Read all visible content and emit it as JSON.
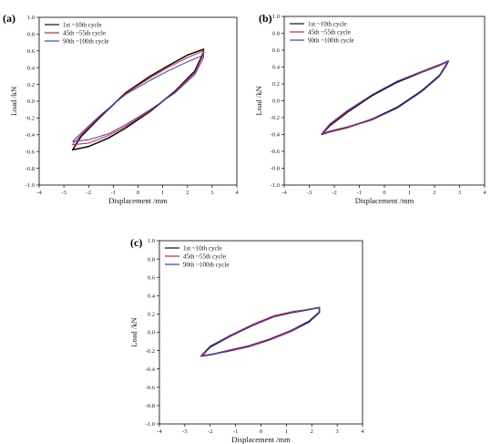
{
  "colors": {
    "series_1": "#111111",
    "series_2": "#e0202a",
    "series_3": "#3a3ad8"
  },
  "chart_data": [
    {
      "type": "line",
      "panel": "(a)",
      "xlabel": "Displacement /mm",
      "ylabel": "Load /kN",
      "xlim": [
        -4,
        4
      ],
      "ylim": [
        -1.0,
        1.0
      ],
      "xticks": [
        -4,
        -3,
        -2,
        -1,
        0,
        1,
        2,
        3,
        4
      ],
      "yticks": [
        -1.0,
        -0.8,
        -0.6,
        -0.4,
        -0.2,
        0.0,
        0.2,
        0.4,
        0.6,
        0.8,
        1.0
      ],
      "legend_position": "top-left",
      "series": [
        {
          "name": "1st ~10th cycle",
          "color": "#111111",
          "x": [
            -2.65,
            -2.3,
            -1.5,
            -0.5,
            0.5,
            1.2,
            2.0,
            2.65,
            2.65,
            2.3,
            1.5,
            0.5,
            -0.5,
            -1.2,
            -2.0,
            -2.65
          ],
          "y": [
            -0.58,
            -0.42,
            -0.18,
            0.1,
            0.3,
            0.42,
            0.55,
            0.62,
            0.58,
            0.36,
            0.12,
            -0.12,
            -0.32,
            -0.44,
            -0.54,
            -0.58
          ]
        },
        {
          "name": "45th ~55th cycle",
          "color": "#e0202a",
          "x": [
            -2.65,
            -2.3,
            -1.5,
            -0.5,
            0.5,
            1.2,
            2.0,
            2.65,
            2.65,
            2.3,
            1.5,
            0.5,
            -0.5,
            -1.2,
            -2.0,
            -2.65
          ],
          "y": [
            -0.52,
            -0.4,
            -0.17,
            0.09,
            0.28,
            0.4,
            0.52,
            0.6,
            0.56,
            0.34,
            0.11,
            -0.11,
            -0.3,
            -0.41,
            -0.5,
            -0.52
          ]
        },
        {
          "name": "90th ~100th cycle",
          "color": "#3a3ad8",
          "x": [
            -2.65,
            -2.3,
            -1.5,
            -0.5,
            0.5,
            1.2,
            2.0,
            2.65,
            2.65,
            2.3,
            1.5,
            0.5,
            -0.5,
            -1.2,
            -2.0,
            -2.65
          ],
          "y": [
            -0.48,
            -0.38,
            -0.16,
            0.08,
            0.25,
            0.36,
            0.47,
            0.55,
            0.52,
            0.32,
            0.1,
            -0.1,
            -0.28,
            -0.39,
            -0.46,
            -0.48
          ]
        }
      ]
    },
    {
      "type": "line",
      "panel": "(b)",
      "xlabel": "Displacement /mm",
      "ylabel": "Load /kN",
      "xlim": [
        -4,
        4
      ],
      "ylim": [
        -1.0,
        1.0
      ],
      "xticks": [
        -4,
        -3,
        -2,
        -1,
        0,
        1,
        2,
        3,
        4
      ],
      "yticks": [
        -1.0,
        -0.8,
        -0.6,
        -0.4,
        -0.2,
        0.0,
        0.2,
        0.4,
        0.6,
        0.8,
        1.0
      ],
      "legend_position": "top-left",
      "series": [
        {
          "name": "1st ~10th cycle",
          "color": "#111111",
          "x": [
            -2.5,
            -2.2,
            -1.5,
            -0.5,
            0.5,
            1.5,
            2.2,
            2.55,
            2.5,
            2.2,
            1.5,
            0.5,
            -0.5,
            -1.5,
            -2.2,
            -2.5
          ],
          "y": [
            -0.4,
            -0.3,
            -0.14,
            0.06,
            0.22,
            0.34,
            0.42,
            0.47,
            0.44,
            0.3,
            0.12,
            -0.08,
            -0.22,
            -0.32,
            -0.37,
            -0.4
          ]
        },
        {
          "name": "45th ~55th cycle",
          "color": "#e0202a",
          "x": [
            -2.5,
            -2.2,
            -1.5,
            -0.5,
            0.5,
            1.5,
            2.2,
            2.55,
            2.5,
            2.2,
            1.5,
            0.5,
            -0.5,
            -1.5,
            -2.2,
            -2.5
          ],
          "y": [
            -0.4,
            -0.29,
            -0.13,
            0.07,
            0.23,
            0.34,
            0.42,
            0.46,
            0.43,
            0.29,
            0.11,
            -0.09,
            -0.23,
            -0.32,
            -0.37,
            -0.4
          ]
        },
        {
          "name": "90th ~100th cycle",
          "color": "#3a3ad8",
          "x": [
            -2.5,
            -2.2,
            -1.5,
            -0.5,
            0.5,
            1.5,
            2.2,
            2.55,
            2.5,
            2.2,
            1.5,
            0.5,
            -0.5,
            -1.5,
            -2.2,
            -2.5
          ],
          "y": [
            -0.39,
            -0.28,
            -0.12,
            0.07,
            0.23,
            0.35,
            0.43,
            0.47,
            0.43,
            0.29,
            0.11,
            -0.09,
            -0.22,
            -0.31,
            -0.36,
            -0.39
          ]
        }
      ]
    },
    {
      "type": "line",
      "panel": "(c)",
      "xlabel": "Displacement /mm",
      "ylabel": "Load /kN",
      "xlim": [
        -4,
        4
      ],
      "ylim": [
        -1.0,
        1.0
      ],
      "xticks": [
        -4,
        -3,
        -2,
        -1,
        0,
        1,
        2,
        3,
        4
      ],
      "yticks": [
        -1.0,
        -0.8,
        -0.6,
        -0.4,
        -0.2,
        0.0,
        0.2,
        0.4,
        0.6,
        0.8,
        1.0
      ],
      "legend_position": "top-left",
      "series": [
        {
          "name": "1st ~10th cycle",
          "color": "#111111",
          "x": [
            -2.35,
            -2.0,
            -1.2,
            -0.3,
            0.5,
            1.3,
            1.9,
            2.3,
            2.3,
            1.9,
            1.2,
            0.3,
            -0.5,
            -1.3,
            -1.9,
            -2.35
          ],
          "y": [
            -0.26,
            -0.16,
            -0.04,
            0.08,
            0.17,
            0.22,
            0.25,
            0.27,
            0.22,
            0.12,
            0.02,
            -0.08,
            -0.15,
            -0.2,
            -0.24,
            -0.26
          ]
        },
        {
          "name": "45th ~55th cycle",
          "color": "#e0202a",
          "x": [
            -2.35,
            -2.0,
            -1.2,
            -0.3,
            0.5,
            1.3,
            1.9,
            2.3,
            2.3,
            1.9,
            1.2,
            0.3,
            -0.5,
            -1.3,
            -1.9,
            -2.35
          ],
          "y": [
            -0.25,
            -0.15,
            -0.03,
            0.09,
            0.18,
            0.23,
            0.25,
            0.27,
            0.21,
            0.11,
            0.01,
            -0.09,
            -0.16,
            -0.21,
            -0.24,
            -0.25
          ]
        },
        {
          "name": "90th ~100th cycle",
          "color": "#3a3ad8",
          "x": [
            -2.35,
            -2.0,
            -1.2,
            -0.3,
            0.5,
            1.3,
            1.9,
            2.3,
            2.3,
            1.9,
            1.2,
            0.3,
            -0.5,
            -1.3,
            -1.9,
            -2.35
          ],
          "y": [
            -0.26,
            -0.15,
            -0.04,
            0.08,
            0.17,
            0.22,
            0.25,
            0.27,
            0.22,
            0.11,
            0.02,
            -0.08,
            -0.15,
            -0.2,
            -0.24,
            -0.26
          ]
        }
      ]
    }
  ]
}
